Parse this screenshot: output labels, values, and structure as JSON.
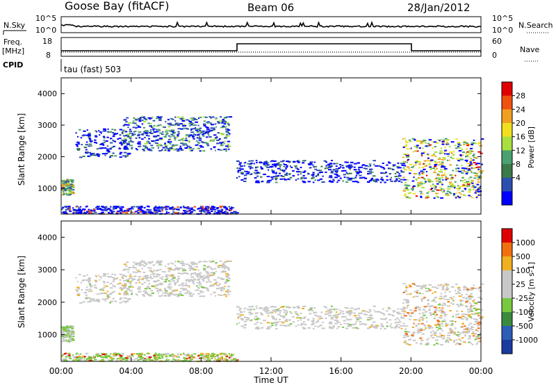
{
  "header": {
    "station": "Goose Bay (fitACF)",
    "beam": "Beam 06",
    "date": "28/Jan/2012"
  },
  "noise_panel": {
    "left_label": "N.Sky",
    "right_label": "N.Search",
    "left_ticks": [
      "10^5",
      "10^0"
    ],
    "right_ticks": [
      "10^5",
      "10^0"
    ]
  },
  "freq_panel": {
    "left_label_1": "Freq.",
    "left_label_2": "[MHz]",
    "right_label": "Nave",
    "left_ticks": [
      "18",
      "8"
    ],
    "right_ticks": [
      "60",
      "0"
    ]
  },
  "cpid": {
    "label": "CPID",
    "text": "tau (fast) 503"
  },
  "colors": {
    "power_scale": [
      "#0000ff",
      "#2d4fb0",
      "#3a7a48",
      "#4aa070",
      "#a8e040",
      "#f0e020",
      "#f0a020",
      "#f05010",
      "#e00000"
    ],
    "velocity_scale": [
      "#1a3aa0",
      "#2d5db5",
      "#3c8a40",
      "#78c840",
      "#c8c8c8",
      "#c8c8c8",
      "#f0b020",
      "#f07010",
      "#e00000"
    ]
  },
  "chart_data": [
    {
      "type": "heatmap",
      "name": "power",
      "ylabel": "Slant Range [km]",
      "colorbar_label": "Power [dB]",
      "colorbar_ticks": [
        "28",
        "24",
        "20",
        "16",
        "12",
        "8",
        "4"
      ],
      "ylim": [
        180,
        4500
      ],
      "yticks": [
        "4000",
        "3000",
        "2000",
        "1000"
      ],
      "xlim": [
        0,
        24
      ],
      "features": [
        {
          "x_start": 0.0,
          "x_end": 0.6,
          "range_low": 800,
          "range_high": 1300
        },
        {
          "x_start": 0.8,
          "x_end": 3.8,
          "range_low": 2000,
          "range_high": 2900
        },
        {
          "x_start": 3.5,
          "x_end": 9.6,
          "range_low": 2200,
          "range_high": 3300
        },
        {
          "x_start": 10.0,
          "x_end": 19.5,
          "range_low": 1200,
          "range_high": 1900
        },
        {
          "x_start": 19.5,
          "x_end": 24.0,
          "range_low": 700,
          "range_high": 2600
        },
        {
          "x_start": 0.0,
          "x_end": 10.0,
          "range_low": 200,
          "range_high": 450
        }
      ]
    },
    {
      "type": "heatmap",
      "name": "velocity",
      "ylabel": "Slant Range [km]",
      "colorbar_label": "Velocity [m s-1]",
      "colorbar_ticks": [
        "1000",
        "500",
        "100",
        "25",
        "-25",
        "-100",
        "-500",
        "-1000"
      ],
      "ylim": [
        180,
        4500
      ],
      "yticks": [
        "4000",
        "3000",
        "2000",
        "1000"
      ],
      "xlim": [
        0,
        24
      ],
      "xticks": [
        "00:00",
        "04:00",
        "08:00",
        "12:00",
        "16:00",
        "20:00",
        "00:00"
      ],
      "xlabel": "Time UT"
    }
  ]
}
